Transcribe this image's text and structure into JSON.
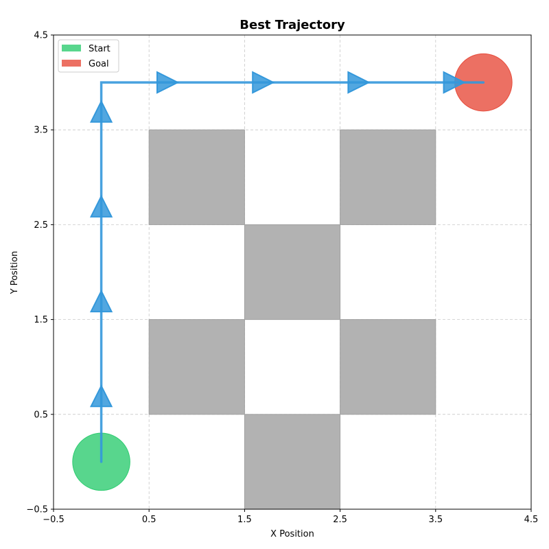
{
  "chart_data": {
    "type": "scatter",
    "title": "Best Trajectory",
    "xlabel": "X Position",
    "ylabel": "Y Position",
    "xlim": [
      -0.5,
      4.5
    ],
    "ylim": [
      -0.5,
      4.5
    ],
    "xticks": [
      -0.5,
      0.5,
      1.5,
      2.5,
      3.5,
      4.5
    ],
    "yticks": [
      -0.5,
      0.5,
      1.5,
      2.5,
      3.5,
      4.5
    ],
    "xtick_labels": [
      "−0.5",
      "0.5",
      "1.5",
      "2.5",
      "3.5",
      "4.5"
    ],
    "ytick_labels": [
      "−0.5",
      "0.5",
      "1.5",
      "2.5",
      "3.5",
      "4.5"
    ],
    "grid": true,
    "legend": {
      "position": "top-left",
      "entries": [
        {
          "label": "Start",
          "color": "#2ecc71"
        },
        {
          "label": "Goal",
          "color": "#e74c3c"
        }
      ]
    },
    "start": {
      "x": 0,
      "y": 0,
      "color": "#2ecc71"
    },
    "goal": {
      "x": 4,
      "y": 4,
      "color": "#e74c3c"
    },
    "obstacles": [
      {
        "x": 1,
        "y": 3
      },
      {
        "x": 3,
        "y": 3
      },
      {
        "x": 2,
        "y": 2
      },
      {
        "x": 1,
        "y": 1
      },
      {
        "x": 3,
        "y": 1
      },
      {
        "x": 2,
        "y": 0
      }
    ],
    "obstacle_color": "#b2b2b2",
    "trajectory": {
      "color": "#3498db",
      "points": [
        {
          "x": 0,
          "y": 0
        },
        {
          "x": 0,
          "y": 1
        },
        {
          "x": 0,
          "y": 2
        },
        {
          "x": 0,
          "y": 3
        },
        {
          "x": 0,
          "y": 4
        },
        {
          "x": 1,
          "y": 4
        },
        {
          "x": 2,
          "y": 4
        },
        {
          "x": 3,
          "y": 4
        },
        {
          "x": 4,
          "y": 4
        }
      ]
    }
  }
}
